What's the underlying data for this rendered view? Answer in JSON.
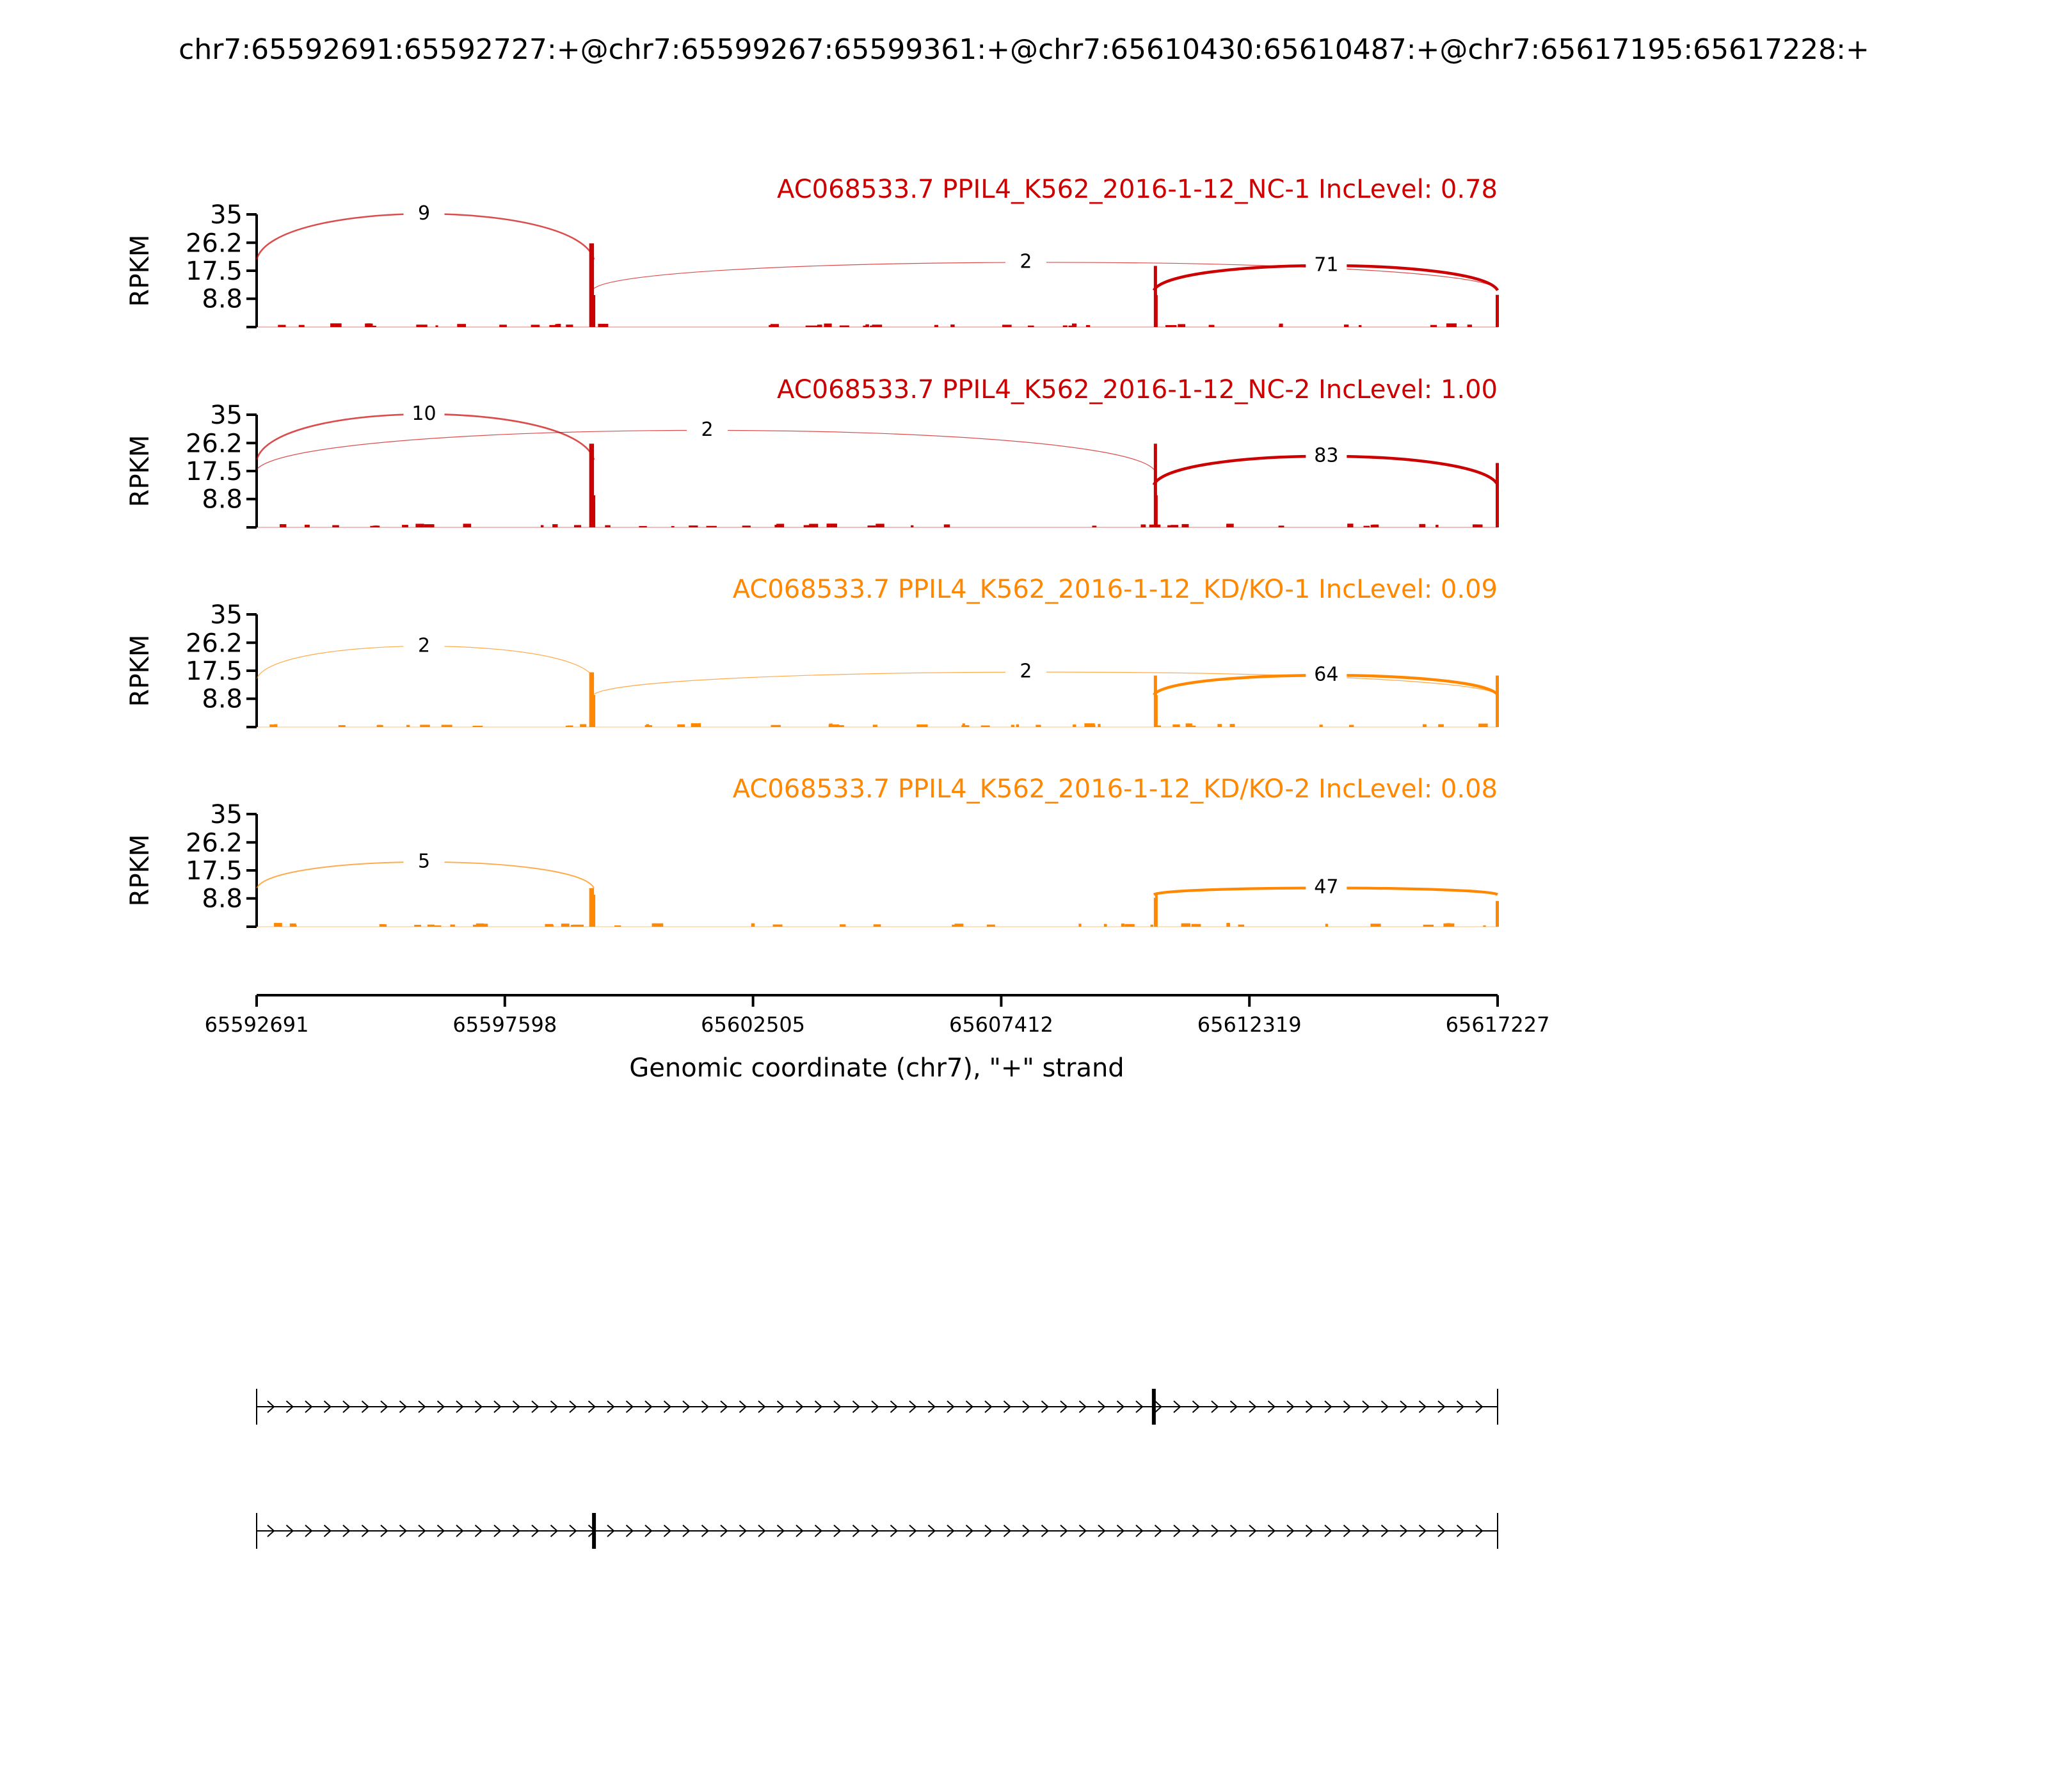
{
  "figure": {
    "title": "chr7:65592691:65592727:+@chr7:65599267:65599361:+@chr7:65610430:65610487:+@chr7:65617195:65617228:+"
  },
  "colors": {
    "nc": "#cc0000",
    "kd": "#ff8800",
    "axis": "#000000"
  },
  "chart_data": {
    "type": "sashimi",
    "ylabel": "RPKM",
    "y_ticks": [
      "8.8",
      "17.5",
      "26.2",
      "35"
    ],
    "ylim": [
      0,
      35
    ],
    "xlim": [
      65592691,
      65617227
    ],
    "x_ticks": [
      "65592691",
      "65597598",
      "65602505",
      "65607412",
      "65612319",
      "65617227"
    ],
    "xlabel": "Genomic coordinate (chr7), \"+\" strand",
    "exons": [
      {
        "start": 65592691,
        "end": 65592727
      },
      {
        "start": 65599267,
        "end": 65599361
      },
      {
        "start": 65610430,
        "end": 65610487
      },
      {
        "start": 65617195,
        "end": 65617228
      }
    ],
    "panels": [
      {
        "title": "AC068533.7 PPIL4_K562_2016-1-12_NC-1 IncLevel: 0.78",
        "color_key": "nc",
        "exon_peaks": [
          0,
          26,
          19,
          10
        ],
        "junctions": [
          {
            "from": 65592691,
            "to": 65599361,
            "count": "9",
            "height": 35,
            "label_x": 65596000
          },
          {
            "from": 65599361,
            "to": 65617227,
            "count": "2",
            "height": 20,
            "label_x": 65607900
          },
          {
            "from": 65610430,
            "to": 65617227,
            "count": "71",
            "height": 19,
            "label_x": 65613840
          }
        ]
      },
      {
        "title": "AC068533.7 PPIL4_K562_2016-1-12_NC-2 IncLevel: 1.00",
        "color_key": "nc",
        "exon_peaks": [
          0,
          26,
          26,
          20
        ],
        "junctions": [
          {
            "from": 65592691,
            "to": 65599361,
            "count": "10",
            "height": 35,
            "label_x": 65596000
          },
          {
            "from": 65592691,
            "to": 65610430,
            "count": "2",
            "height": 30,
            "label_x": 65601600
          },
          {
            "from": 65610430,
            "to": 65617227,
            "count": "83",
            "height": 22,
            "label_x": 65613840
          }
        ]
      },
      {
        "title": "AC068533.7 PPIL4_K562_2016-1-12_KD/KO-1 IncLevel: 0.09",
        "color_key": "kd",
        "exon_peaks": [
          0,
          17,
          16,
          16
        ],
        "junctions": [
          {
            "from": 65592691,
            "to": 65599361,
            "count": "2",
            "height": 25,
            "label_x": 65596000
          },
          {
            "from": 65599361,
            "to": 65617227,
            "count": "2",
            "height": 17,
            "label_x": 65607900
          },
          {
            "from": 65610430,
            "to": 65617227,
            "count": "64",
            "height": 16,
            "label_x": 65613840
          }
        ]
      },
      {
        "title": "AC068533.7 PPIL4_K562_2016-1-12_KD/KO-2 IncLevel: 0.08",
        "color_key": "kd",
        "exon_peaks": [
          0,
          12,
          9,
          8
        ],
        "junctions": [
          {
            "from": 65592691,
            "to": 65599361,
            "count": "5",
            "height": 20,
            "label_x": 65596000
          },
          {
            "from": 65610430,
            "to": 65617227,
            "count": "47",
            "height": 12,
            "label_x": 65613840
          }
        ]
      }
    ],
    "isoforms": [
      {
        "exons": [
          65592691,
          65610430,
          65617227
        ]
      },
      {
        "exons": [
          65592691,
          65599361,
          65617227
        ]
      }
    ]
  }
}
